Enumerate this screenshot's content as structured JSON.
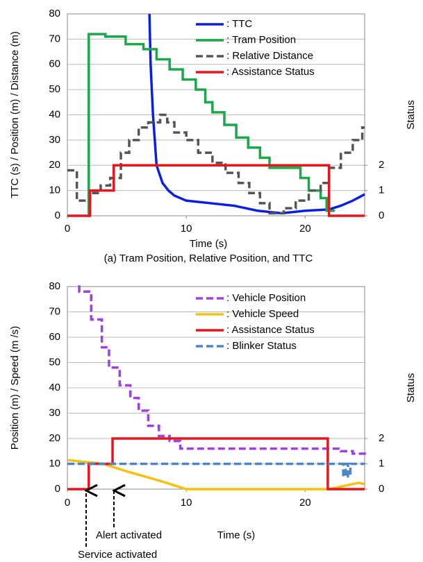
{
  "chart_data": [
    {
      "type": "line",
      "ylabel": "TTC (s) / Position (m) / Distance (m)",
      "y2label": "Status",
      "xlabel": "Time (s)",
      "caption": "(a) Tram Position, Relative Position, and TTC",
      "xlim": [
        0,
        25
      ],
      "xticks": [
        0,
        10,
        20
      ],
      "ylim": [
        0,
        80
      ],
      "yticks": [
        0,
        10,
        20,
        30,
        40,
        50,
        60,
        70,
        80
      ],
      "y2lim": [
        0,
        8
      ],
      "y2ticks": [
        0,
        1,
        2
      ],
      "grid": true,
      "legend": "upper right",
      "series": [
        {
          "name": ": TTC",
          "color": "#0a1ee6",
          "x": [
            6.9,
            7.0,
            7.2,
            7.5,
            8,
            8.5,
            9,
            10,
            12,
            14,
            15,
            16,
            18,
            20,
            22,
            23,
            24,
            25
          ],
          "values": [
            80,
            60,
            40,
            20,
            13,
            10,
            8,
            6,
            5,
            4,
            3,
            2,
            1,
            2,
            2.5,
            4,
            6,
            8.5
          ]
        },
        {
          "name": ": Tram Position",
          "color": "#1aa84a",
          "step": true,
          "x": [
            1.7,
            1.8,
            3.2,
            4.9,
            6.4,
            7.5,
            8.6,
            9.7,
            10.8,
            11.6,
            12.2,
            13.2,
            14.2,
            15.2,
            16.2,
            17,
            19.6,
            20.3,
            21.3,
            21.8,
            22.5
          ],
          "values": [
            0,
            72,
            71,
            68,
            66,
            62,
            58,
            54,
            50,
            45,
            41,
            36,
            31,
            27,
            23,
            19,
            15,
            10,
            7,
            2,
            2
          ]
        },
        {
          "name": ": Relative Distance",
          "color": "#555555",
          "step": true,
          "dash": true,
          "x": [
            0,
            0.8,
            1.9,
            2.8,
            3.6,
            4.5,
            5.2,
            6,
            6.8,
            7.8,
            8.4,
            9,
            10,
            11,
            12.2,
            13.3,
            14.4,
            15.3,
            16.2,
            17,
            18.2,
            19.2,
            20.3,
            21.3,
            22,
            23,
            24,
            24.8,
            25
          ],
          "values": [
            18,
            6,
            9,
            12,
            15,
            25,
            30,
            35,
            37,
            40,
            37,
            33,
            30,
            25,
            21,
            17,
            13,
            9,
            5,
            1,
            3,
            6,
            10,
            13,
            19,
            25,
            30,
            35,
            35
          ]
        },
        {
          "name": ": Assistance Status",
          "color": "#e8141c",
          "step": true,
          "axis": "y2",
          "x": [
            0,
            1.9,
            3.9,
            22,
            25
          ],
          "values": [
            0,
            1,
            2,
            0,
            0
          ]
        }
      ]
    },
    {
      "type": "line",
      "ylabel": "Position (m) / Speed (m /s)",
      "y2label": "Status",
      "xlabel": "Time (s)",
      "annotations": [
        "Alert activated",
        "Service activated"
      ],
      "xlim": [
        0,
        25
      ],
      "xticks": [
        0,
        10,
        20
      ],
      "ylim": [
        0,
        80
      ],
      "yticks": [
        0,
        10,
        20,
        30,
        40,
        50,
        60,
        70,
        80
      ],
      "y2lim": [
        0,
        8
      ],
      "y2ticks": [
        0,
        1,
        2
      ],
      "grid": true,
      "legend": "upper right",
      "series": [
        {
          "name": ": Vehicle Position",
          "color": "#a040e0",
          "step": true,
          "dash": true,
          "x": [
            0.9,
            1.0,
            2.0,
            2.9,
            3.5,
            4.4,
            5.3,
            6,
            6.8,
            7.7,
            8.6,
            9.5,
            23,
            24,
            25
          ],
          "values": [
            80,
            78,
            67,
            56,
            48,
            41,
            36,
            31,
            25,
            21,
            19,
            16,
            15,
            14,
            13
          ]
        },
        {
          "name": ": Vehicle Speed",
          "color": "#f5c010",
          "x": [
            0,
            2,
            3,
            5,
            8,
            10,
            22,
            23,
            24,
            24.5,
            25
          ],
          "values": [
            11.5,
            10.5,
            10,
            7,
            3,
            0,
            0,
            1,
            2,
            2.5,
            2
          ]
        },
        {
          "name": ": Assistance Status",
          "color": "#e8141c",
          "step": true,
          "axis": "y2",
          "x": [
            0,
            1.8,
            3.8,
            21.9,
            25
          ],
          "values": [
            0,
            1,
            2,
            0,
            0
          ]
        },
        {
          "name": ": Blinker Status",
          "color": "#4a86c8",
          "step": true,
          "dash": true,
          "axis": "y2",
          "x": [
            0,
            23.2,
            23.4,
            23.6,
            23.8,
            25
          ],
          "values": [
            1,
            0.5,
            1,
            0.5,
            1,
            1
          ]
        }
      ]
    }
  ]
}
